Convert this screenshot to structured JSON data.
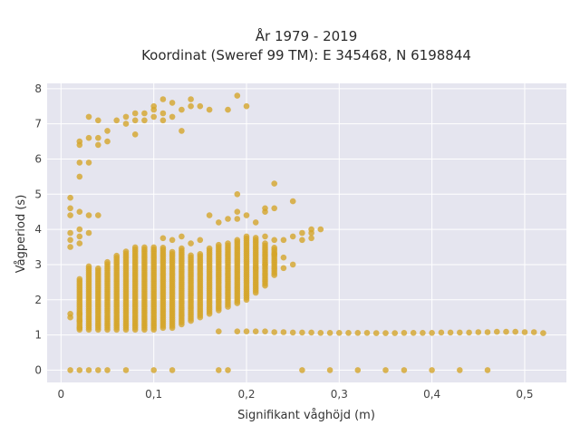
{
  "chart_data": {
    "type": "scatter",
    "title": "År 1979 - 2019",
    "subtitle": "Koordinat (Sweref 99 TM): E 345468, N 6198844",
    "xlabel": "Signifikant våghöjd (m)",
    "ylabel": "Vågperiod (s)",
    "xlim": [
      -0.015,
      0.545
    ],
    "ylim": [
      -0.35,
      8.15
    ],
    "xticks": [
      0,
      0.1,
      0.2,
      0.3,
      0.4,
      0.5
    ],
    "xtick_labels": [
      "0",
      "0,1",
      "0,2",
      "0,3",
      "0,4",
      "0,5"
    ],
    "yticks": [
      0,
      1,
      2,
      3,
      4,
      5,
      6,
      7,
      8
    ],
    "ytick_labels": [
      "0",
      "1",
      "2",
      "3",
      "4",
      "5",
      "6",
      "7",
      "8"
    ],
    "grid": true,
    "legend": false,
    "colors": {
      "marker": "#d4a52a",
      "plot_bg": "#e5e5ef",
      "grid": "#ffffff"
    },
    "points": [
      [
        0.01,
        0
      ],
      [
        0.02,
        0
      ],
      [
        0.03,
        0
      ],
      [
        0.04,
        0
      ],
      [
        0.05,
        0
      ],
      [
        0.07,
        0
      ],
      [
        0.1,
        0
      ],
      [
        0.12,
        0
      ],
      [
        0.17,
        0
      ],
      [
        0.18,
        0
      ],
      [
        0.26,
        0
      ],
      [
        0.29,
        0
      ],
      [
        0.32,
        0
      ],
      [
        0.35,
        0
      ],
      [
        0.37,
        0
      ],
      [
        0.4,
        0
      ],
      [
        0.43,
        0
      ],
      [
        0.46,
        0
      ],
      [
        0.17,
        1.1
      ],
      [
        0.19,
        1.1
      ],
      [
        0.2,
        1.1
      ],
      [
        0.21,
        1.1
      ],
      [
        0.22,
        1.1
      ],
      [
        0.23,
        1.08
      ],
      [
        0.24,
        1.08
      ],
      [
        0.25,
        1.07
      ],
      [
        0.26,
        1.07
      ],
      [
        0.27,
        1.07
      ],
      [
        0.28,
        1.06
      ],
      [
        0.29,
        1.06
      ],
      [
        0.3,
        1.06
      ],
      [
        0.31,
        1.06
      ],
      [
        0.32,
        1.06
      ],
      [
        0.33,
        1.06
      ],
      [
        0.34,
        1.05
      ],
      [
        0.35,
        1.05
      ],
      [
        0.36,
        1.05
      ],
      [
        0.37,
        1.06
      ],
      [
        0.38,
        1.06
      ],
      [
        0.39,
        1.06
      ],
      [
        0.4,
        1.06
      ],
      [
        0.41,
        1.07
      ],
      [
        0.42,
        1.07
      ],
      [
        0.43,
        1.07
      ],
      [
        0.44,
        1.07
      ],
      [
        0.45,
        1.08
      ],
      [
        0.46,
        1.08
      ],
      [
        0.47,
        1.09
      ],
      [
        0.48,
        1.09
      ],
      [
        0.49,
        1.09
      ],
      [
        0.5,
        1.08
      ],
      [
        0.51,
        1.08
      ],
      [
        0.52,
        1.05
      ],
      [
        0.01,
        1.5
      ],
      [
        0.01,
        1.6
      ],
      [
        0.02,
        1.2
      ],
      [
        0.02,
        1.4
      ],
      [
        0.02,
        1.6
      ],
      [
        0.01,
        3.5
      ],
      [
        0.01,
        3.7
      ],
      [
        0.01,
        3.9
      ],
      [
        0.01,
        4.4
      ],
      [
        0.01,
        4.6
      ],
      [
        0.01,
        4.9
      ],
      [
        0.02,
        3.6
      ],
      [
        0.02,
        3.8
      ],
      [
        0.02,
        4.0
      ],
      [
        0.02,
        4.5
      ],
      [
        0.03,
        3.9
      ],
      [
        0.03,
        4.4
      ],
      [
        0.04,
        4.4
      ],
      [
        0.02,
        5.5
      ],
      [
        0.02,
        5.9
      ],
      [
        0.02,
        6.4
      ],
      [
        0.02,
        6.5
      ],
      [
        0.03,
        5.9
      ],
      [
        0.03,
        6.6
      ],
      [
        0.03,
        7.2
      ],
      [
        0.04,
        6.4
      ],
      [
        0.04,
        6.6
      ],
      [
        0.04,
        7.1
      ],
      [
        0.05,
        6.5
      ],
      [
        0.05,
        6.8
      ],
      [
        0.06,
        7.1
      ],
      [
        0.07,
        7.0
      ],
      [
        0.07,
        7.2
      ],
      [
        0.08,
        6.7
      ],
      [
        0.08,
        7.1
      ],
      [
        0.08,
        7.3
      ],
      [
        0.09,
        7.1
      ],
      [
        0.09,
        7.3
      ],
      [
        0.1,
        7.2
      ],
      [
        0.1,
        7.4
      ],
      [
        0.1,
        7.5
      ],
      [
        0.11,
        7.1
      ],
      [
        0.11,
        7.3
      ],
      [
        0.11,
        7.7
      ],
      [
        0.12,
        7.2
      ],
      [
        0.12,
        7.6
      ],
      [
        0.13,
        6.8
      ],
      [
        0.13,
        7.4
      ],
      [
        0.14,
        7.5
      ],
      [
        0.14,
        7.7
      ],
      [
        0.15,
        7.5
      ],
      [
        0.16,
        7.4
      ],
      [
        0.18,
        7.4
      ],
      [
        0.19,
        7.8
      ],
      [
        0.2,
        7.5
      ],
      [
        0.19,
        5.0
      ],
      [
        0.19,
        4.5
      ],
      [
        0.19,
        4.3
      ],
      [
        0.2,
        4.4
      ],
      [
        0.21,
        4.2
      ],
      [
        0.22,
        4.5
      ],
      [
        0.22,
        4.6
      ],
      [
        0.23,
        5.3
      ],
      [
        0.23,
        4.6
      ],
      [
        0.25,
        4.8
      ],
      [
        0.27,
        3.9
      ],
      [
        0.27,
        4.0
      ],
      [
        0.28,
        4.0
      ],
      [
        0.26,
        3.9
      ],
      [
        0.16,
        4.4
      ],
      [
        0.17,
        4.2
      ],
      [
        0.18,
        4.3
      ],
      [
        0.15,
        3.7
      ],
      [
        0.14,
        3.6
      ],
      [
        0.13,
        3.8
      ],
      [
        0.12,
        3.7
      ],
      [
        0.11,
        3.75
      ],
      [
        0.22,
        3.8
      ],
      [
        0.23,
        3.7
      ],
      [
        0.24,
        3.7
      ],
      [
        0.25,
        3.8
      ],
      [
        0.26,
        3.7
      ],
      [
        0.27,
        3.75
      ],
      [
        0.23,
        3.3
      ],
      [
        0.24,
        3.2
      ],
      [
        0.24,
        2.9
      ],
      [
        0.25,
        3.0
      ],
      [
        0.22,
        3.0
      ],
      [
        0.21,
        2.9
      ]
    ],
    "columns": [
      {
        "x": 0.02,
        "ymin": 1.15,
        "ymax": 2.6
      },
      {
        "x": 0.03,
        "ymin": 1.15,
        "ymax": 3.0
      },
      {
        "x": 0.04,
        "ymin": 1.15,
        "ymax": 2.9
      },
      {
        "x": 0.05,
        "ymin": 1.15,
        "ymax": 3.1
      },
      {
        "x": 0.06,
        "ymin": 1.15,
        "ymax": 3.3
      },
      {
        "x": 0.07,
        "ymin": 1.15,
        "ymax": 3.4
      },
      {
        "x": 0.08,
        "ymin": 1.15,
        "ymax": 3.5
      },
      {
        "x": 0.09,
        "ymin": 1.15,
        "ymax": 3.5
      },
      {
        "x": 0.1,
        "ymin": 1.15,
        "ymax": 3.5
      },
      {
        "x": 0.11,
        "ymin": 1.2,
        "ymax": 3.5
      },
      {
        "x": 0.12,
        "ymin": 1.2,
        "ymax": 3.4
      },
      {
        "x": 0.13,
        "ymin": 1.3,
        "ymax": 3.5
      },
      {
        "x": 0.14,
        "ymin": 1.4,
        "ymax": 3.3
      },
      {
        "x": 0.15,
        "ymin": 1.5,
        "ymax": 3.3
      },
      {
        "x": 0.16,
        "ymin": 1.6,
        "ymax": 3.5
      },
      {
        "x": 0.17,
        "ymin": 1.7,
        "ymax": 3.6
      },
      {
        "x": 0.18,
        "ymin": 1.8,
        "ymax": 3.6
      },
      {
        "x": 0.19,
        "ymin": 1.9,
        "ymax": 3.7
      },
      {
        "x": 0.2,
        "ymin": 2.0,
        "ymax": 3.8
      },
      {
        "x": 0.21,
        "ymin": 2.2,
        "ymax": 3.8
      },
      {
        "x": 0.22,
        "ymin": 2.4,
        "ymax": 3.6
      },
      {
        "x": 0.23,
        "ymin": 2.7,
        "ymax": 3.5
      }
    ]
  }
}
